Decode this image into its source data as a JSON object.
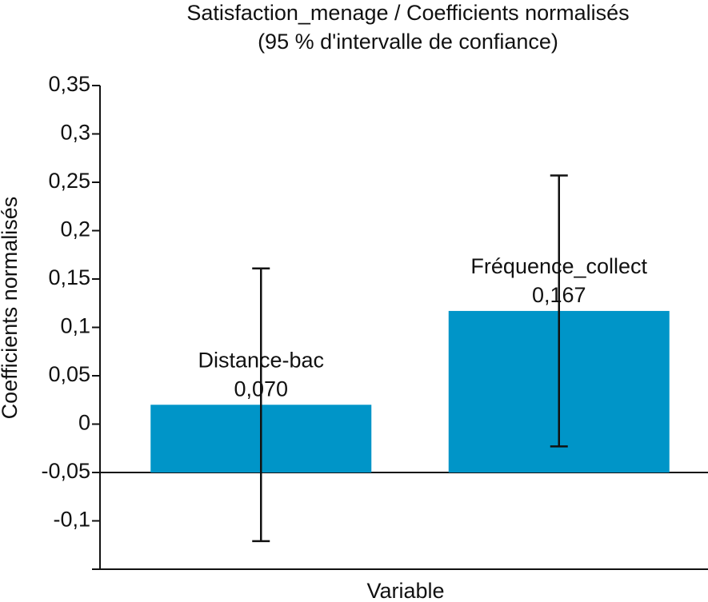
{
  "chart_data": {
    "type": "bar",
    "title": "Satisfaction_menage / Coefficients normalisés",
    "subtitle": "(95 % d'intervalle de confiance)",
    "x_label": "Variable",
    "y_label": "Coefficients normalisés",
    "categories": [
      "Distance-bac",
      "Fréquence_collect"
    ],
    "values": [
      0.07,
      0.167
    ],
    "value_labels": [
      "0,070",
      "0,167"
    ],
    "errors": [
      0.141,
      0.14
    ],
    "bar_origin": -0.05,
    "color": "#0095c8",
    "ylim": [
      -0.15,
      0.35
    ],
    "yticks": [
      {
        "value": -0.15,
        "label": ""
      },
      {
        "value": -0.1,
        "label": "-0,1"
      },
      {
        "value": -0.05,
        "label": "-0,05"
      },
      0,
      {
        "value": 0.05,
        "label": "0,05"
      },
      {
        "value": 0.1,
        "label": "0,1"
      },
      {
        "value": 0.15,
        "label": "0,15"
      },
      {
        "value": 0.2,
        "label": "0,2"
      },
      {
        "value": 0.25,
        "label": "0,25"
      },
      {
        "value": 0.3,
        "label": "0,3"
      },
      {
        "value": 0.35,
        "label": "0,35"
      }
    ],
    "grid": false
  }
}
